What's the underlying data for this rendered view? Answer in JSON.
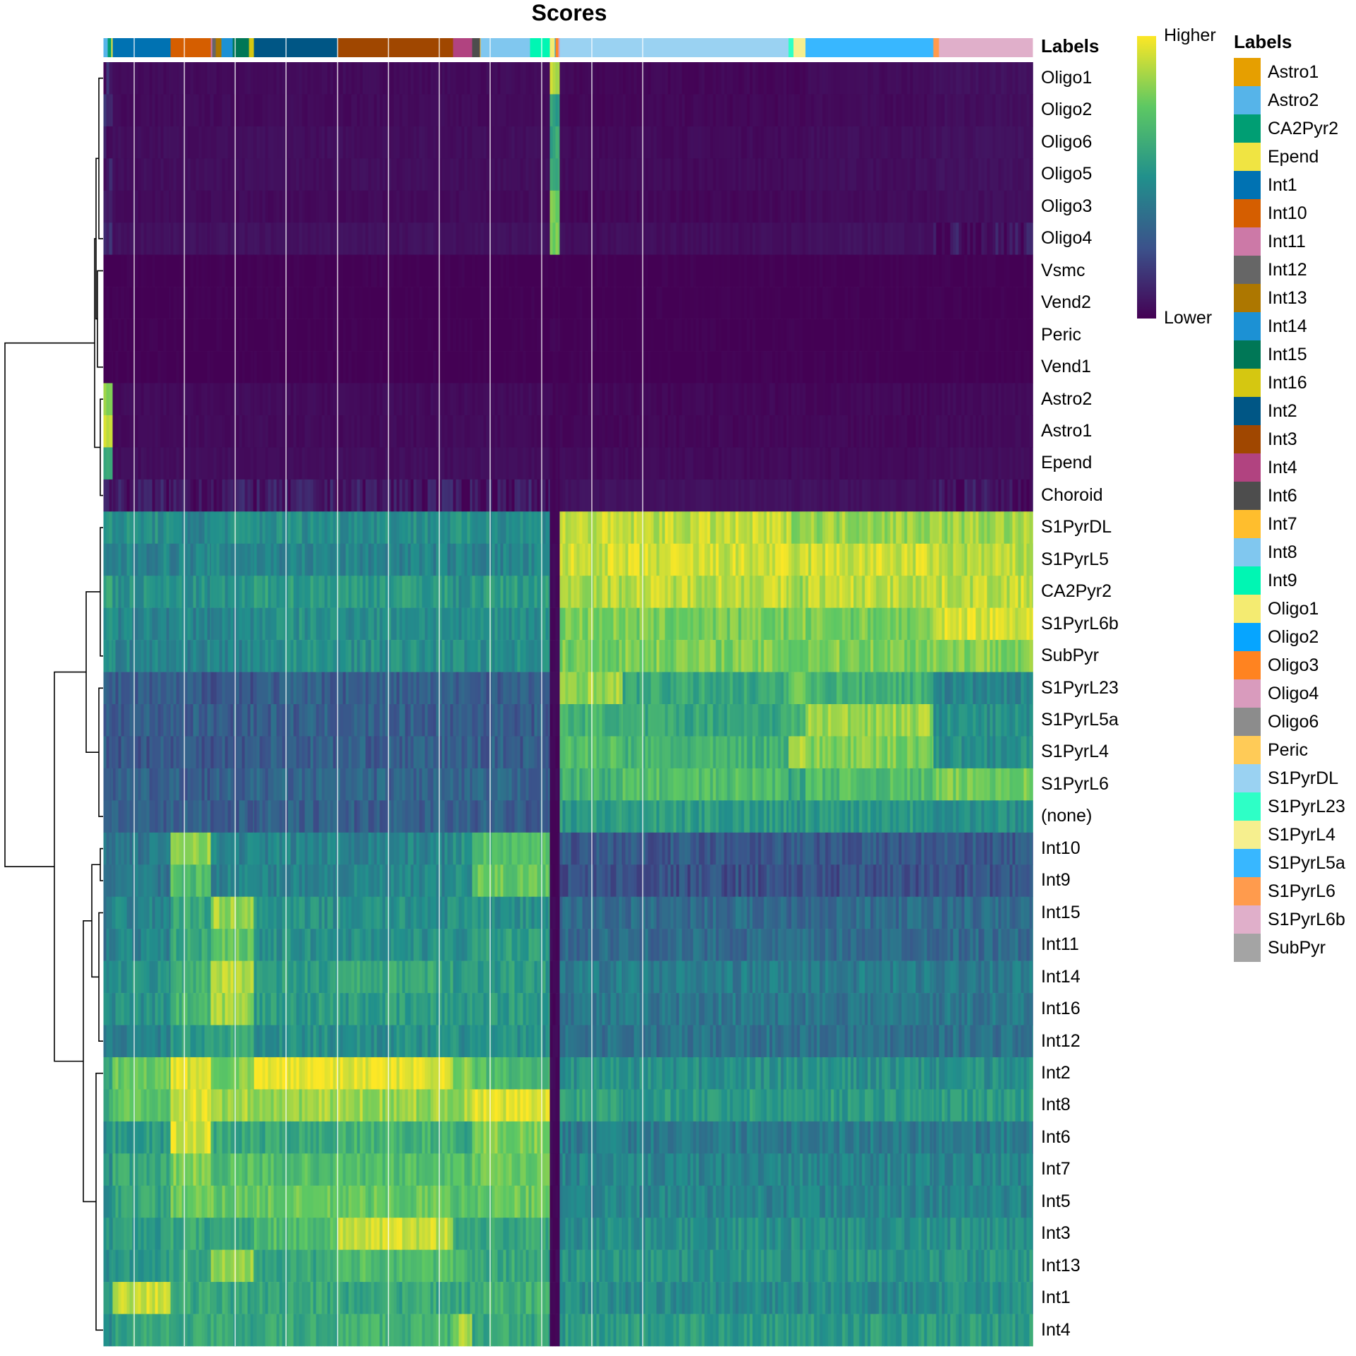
{
  "chart_data": {
    "type": "heatmap",
    "title": "Scores",
    "annotation_title": "Labels",
    "colorbar": {
      "high_label": "Higher",
      "low_label": "Lower",
      "palette": [
        "#440154",
        "#3B528B",
        "#21908C",
        "#5DC863",
        "#FDE725"
      ]
    },
    "rows": [
      "Oligo1",
      "Oligo2",
      "Oligo6",
      "Oligo5",
      "Oligo3",
      "Oligo4",
      "Vsmc",
      "Vend2",
      "Peric",
      "Vend1",
      "Astro2",
      "Astro1",
      "Epend",
      "Choroid",
      "S1PyrDL",
      "S1PyrL5",
      "CA2Pyr2",
      "S1PyrL6b",
      "SubPyr",
      "S1PyrL23",
      "S1PyrL5a",
      "S1PyrL4",
      "S1PyrL6",
      "(none)",
      "Int10",
      "Int9",
      "Int15",
      "Int11",
      "Int14",
      "Int16",
      "Int12",
      "Int2",
      "Int8",
      "Int6",
      "Int7",
      "Int5",
      "Int3",
      "Int13",
      "Int1",
      "Int4"
    ],
    "column_annotation": [
      [
        "Astro2",
        6
      ],
      [
        "CA2Pyr2",
        5
      ],
      [
        "Epend",
        2
      ],
      [
        "Int1",
        82
      ],
      [
        "Int10",
        57
      ],
      [
        "Int11",
        2
      ],
      [
        "Int12",
        5
      ],
      [
        "Int13",
        8
      ],
      [
        "Int14",
        16
      ],
      [
        "Int15",
        23
      ],
      [
        "Int16",
        7
      ],
      [
        "Int2",
        118
      ],
      [
        "Int3",
        164
      ],
      [
        "Int4",
        27
      ],
      [
        "Int6",
        11
      ],
      [
        "Int7",
        1
      ],
      [
        "Int8",
        70
      ],
      [
        "Int9",
        28
      ],
      [
        "Oligo1",
        7
      ],
      [
        "Oligo2",
        1
      ],
      [
        "Oligo3",
        4
      ],
      [
        "Oligo4",
        2
      ],
      [
        "S1PyrDL",
        324
      ],
      [
        "S1PyrL23",
        7
      ],
      [
        "S1PyrL4",
        17
      ],
      [
        "S1PyrL5a",
        181
      ],
      [
        "S1PyrL6",
        8
      ],
      [
        "S1PyrL6b",
        133
      ]
    ],
    "column_groups": [
      {
        "labels": [
          "Astro2",
          "CA2Pyr2",
          "Epend"
        ],
        "n": 13
      },
      {
        "labels": [
          "Int1"
        ],
        "n": 82
      },
      {
        "labels": [
          "Int10"
        ],
        "n": 57
      },
      {
        "labels": [
          "Int11",
          "Int12",
          "Int13",
          "Int14",
          "Int15",
          "Int16"
        ],
        "n": 61
      },
      {
        "labels": [
          "Int2"
        ],
        "n": 118
      },
      {
        "labels": [
          "Int3"
        ],
        "n": 164
      },
      {
        "labels": [
          "Int4"
        ],
        "n": 27
      },
      {
        "labels": [
          "Int6",
          "Int7",
          "Int8",
          "Int9"
        ],
        "n": 110
      },
      {
        "labels": [
          "Oligo1",
          "Oligo2",
          "Oligo3",
          "Oligo4"
        ],
        "n": 14
      },
      {
        "labels": [
          "S1PyrDL"
        ],
        "n": 89
      },
      {
        "labels": [
          "S1PyrDL"
        ],
        "n": 235
      },
      {
        "labels": [
          "S1PyrL23",
          "S1PyrL4"
        ],
        "n": 24
      },
      {
        "labels": [
          "S1PyrL5a"
        ],
        "n": 181
      },
      {
        "labels": [
          "S1PyrL6",
          "S1PyrL6b"
        ],
        "n": 141
      }
    ],
    "values": [
      [
        0.1,
        0.03,
        0.03,
        0.03,
        0.03,
        0.03,
        0.03,
        0.03,
        0.9,
        0.02,
        0.02,
        0.02,
        0.03,
        0.05
      ],
      [
        0.1,
        0.03,
        0.03,
        0.03,
        0.03,
        0.03,
        0.03,
        0.03,
        0.55,
        0.02,
        0.02,
        0.02,
        0.03,
        0.04
      ],
      [
        0.08,
        0.04,
        0.04,
        0.04,
        0.04,
        0.04,
        0.04,
        0.04,
        0.6,
        0.03,
        0.03,
        0.03,
        0.04,
        0.05
      ],
      [
        0.08,
        0.04,
        0.04,
        0.04,
        0.04,
        0.04,
        0.04,
        0.04,
        0.65,
        0.03,
        0.03,
        0.03,
        0.04,
        0.05
      ],
      [
        0.1,
        0.03,
        0.03,
        0.03,
        0.03,
        0.03,
        0.03,
        0.03,
        0.8,
        0.02,
        0.02,
        0.02,
        0.03,
        0.04
      ],
      [
        0.1,
        0.05,
        0.05,
        0.05,
        0.05,
        0.05,
        0.05,
        0.05,
        0.75,
        0.04,
        0.04,
        0.04,
        0.05,
        0.06
      ],
      [
        0.0,
        0.0,
        0.0,
        0.0,
        0.0,
        0.0,
        0.0,
        0.0,
        0.0,
        0.0,
        0.0,
        0.0,
        0.0,
        0.0
      ],
      [
        0.0,
        0.0,
        0.0,
        0.0,
        0.0,
        0.0,
        0.0,
        0.0,
        0.0,
        0.0,
        0.0,
        0.0,
        0.0,
        0.0
      ],
      [
        0.0,
        0.0,
        0.0,
        0.0,
        0.0,
        0.0,
        0.0,
        0.0,
        0.02,
        0.0,
        0.0,
        0.0,
        0.0,
        0.0
      ],
      [
        0.0,
        0.0,
        0.0,
        0.0,
        0.0,
        0.0,
        0.0,
        0.0,
        0.0,
        0.0,
        0.0,
        0.0,
        0.0,
        0.0
      ],
      [
        0.8,
        0.03,
        0.03,
        0.03,
        0.03,
        0.03,
        0.03,
        0.03,
        0.02,
        0.02,
        0.02,
        0.02,
        0.02,
        0.03
      ],
      [
        0.9,
        0.03,
        0.03,
        0.03,
        0.03,
        0.03,
        0.03,
        0.03,
        0.02,
        0.02,
        0.02,
        0.02,
        0.02,
        0.03
      ],
      [
        0.6,
        0.04,
        0.04,
        0.04,
        0.04,
        0.04,
        0.04,
        0.04,
        0.02,
        0.03,
        0.03,
        0.03,
        0.03,
        0.04
      ],
      [
        0.1,
        0.07,
        0.07,
        0.07,
        0.07,
        0.07,
        0.07,
        0.07,
        0.02,
        0.05,
        0.05,
        0.05,
        0.05,
        0.06
      ],
      [
        0.5,
        0.5,
        0.45,
        0.5,
        0.5,
        0.5,
        0.5,
        0.5,
        0.02,
        0.9,
        0.9,
        0.85,
        0.85,
        0.85
      ],
      [
        0.4,
        0.45,
        0.45,
        0.45,
        0.45,
        0.45,
        0.45,
        0.45,
        0.02,
        0.92,
        0.92,
        0.9,
        0.92,
        0.88
      ],
      [
        0.6,
        0.5,
        0.5,
        0.5,
        0.55,
        0.55,
        0.5,
        0.55,
        0.02,
        0.88,
        0.9,
        0.85,
        0.9,
        0.9
      ],
      [
        0.5,
        0.45,
        0.45,
        0.45,
        0.5,
        0.5,
        0.45,
        0.5,
        0.02,
        0.8,
        0.78,
        0.8,
        0.78,
        0.95
      ],
      [
        0.5,
        0.45,
        0.45,
        0.45,
        0.5,
        0.5,
        0.5,
        0.5,
        0.02,
        0.78,
        0.8,
        0.75,
        0.8,
        0.82
      ],
      [
        0.3,
        0.28,
        0.28,
        0.28,
        0.3,
        0.3,
        0.3,
        0.3,
        0.02,
        0.85,
        0.6,
        0.8,
        0.65,
        0.45
      ],
      [
        0.3,
        0.3,
        0.3,
        0.3,
        0.3,
        0.3,
        0.3,
        0.3,
        0.02,
        0.65,
        0.6,
        0.65,
        0.85,
        0.5
      ],
      [
        0.3,
        0.28,
        0.28,
        0.28,
        0.3,
        0.3,
        0.3,
        0.3,
        0.02,
        0.7,
        0.65,
        0.9,
        0.8,
        0.5
      ],
      [
        0.35,
        0.3,
        0.3,
        0.3,
        0.32,
        0.32,
        0.3,
        0.32,
        0.02,
        0.65,
        0.7,
        0.6,
        0.7,
        0.78
      ],
      [
        0.35,
        0.3,
        0.3,
        0.3,
        0.3,
        0.3,
        0.3,
        0.3,
        0.02,
        0.55,
        0.55,
        0.5,
        0.55,
        0.5
      ],
      [
        0.4,
        0.4,
        0.85,
        0.45,
        0.45,
        0.45,
        0.5,
        0.7,
        0.02,
        0.28,
        0.28,
        0.28,
        0.28,
        0.28
      ],
      [
        0.4,
        0.4,
        0.7,
        0.45,
        0.45,
        0.45,
        0.5,
        0.75,
        0.02,
        0.25,
        0.25,
        0.25,
        0.25,
        0.27
      ],
      [
        0.4,
        0.45,
        0.6,
        0.85,
        0.5,
        0.5,
        0.5,
        0.5,
        0.02,
        0.35,
        0.35,
        0.35,
        0.35,
        0.35
      ],
      [
        0.4,
        0.45,
        0.6,
        0.75,
        0.5,
        0.5,
        0.5,
        0.55,
        0.02,
        0.35,
        0.35,
        0.35,
        0.35,
        0.35
      ],
      [
        0.45,
        0.5,
        0.65,
        0.9,
        0.55,
        0.6,
        0.55,
        0.55,
        0.02,
        0.42,
        0.42,
        0.42,
        0.42,
        0.42
      ],
      [
        0.45,
        0.5,
        0.65,
        0.85,
        0.55,
        0.55,
        0.55,
        0.55,
        0.02,
        0.4,
        0.4,
        0.4,
        0.4,
        0.4
      ],
      [
        0.4,
        0.45,
        0.55,
        0.6,
        0.5,
        0.5,
        0.5,
        0.5,
        0.02,
        0.38,
        0.38,
        0.38,
        0.38,
        0.38
      ],
      [
        0.6,
        0.75,
        0.95,
        0.8,
        0.98,
        0.97,
        0.8,
        0.7,
        0.02,
        0.5,
        0.5,
        0.5,
        0.5,
        0.5
      ],
      [
        0.6,
        0.75,
        0.95,
        0.85,
        0.85,
        0.85,
        0.85,
        0.95,
        0.02,
        0.6,
        0.55,
        0.55,
        0.55,
        0.55
      ],
      [
        0.5,
        0.55,
        0.95,
        0.6,
        0.6,
        0.65,
        0.6,
        0.8,
        0.02,
        0.42,
        0.42,
        0.42,
        0.42,
        0.42
      ],
      [
        0.5,
        0.6,
        0.8,
        0.7,
        0.7,
        0.7,
        0.7,
        0.75,
        0.02,
        0.45,
        0.45,
        0.45,
        0.45,
        0.45
      ],
      [
        0.5,
        0.6,
        0.75,
        0.75,
        0.75,
        0.75,
        0.7,
        0.75,
        0.02,
        0.45,
        0.45,
        0.45,
        0.45,
        0.45
      ],
      [
        0.5,
        0.55,
        0.6,
        0.6,
        0.7,
        0.92,
        0.6,
        0.6,
        0.02,
        0.5,
        0.5,
        0.5,
        0.5,
        0.5
      ],
      [
        0.5,
        0.55,
        0.6,
        0.85,
        0.6,
        0.7,
        0.65,
        0.6,
        0.02,
        0.52,
        0.52,
        0.52,
        0.52,
        0.52
      ],
      [
        0.6,
        0.92,
        0.6,
        0.6,
        0.6,
        0.6,
        0.6,
        0.65,
        0.02,
        0.48,
        0.48,
        0.48,
        0.48,
        0.5
      ],
      [
        0.5,
        0.6,
        0.6,
        0.6,
        0.6,
        0.65,
        0.85,
        0.6,
        0.02,
        0.55,
        0.55,
        0.55,
        0.55,
        0.55
      ]
    ],
    "legend": {
      "title": "Labels",
      "items": [
        {
          "label": "Astro1",
          "color": "#E69F00"
        },
        {
          "label": "Astro2",
          "color": "#56B4E9"
        },
        {
          "label": "CA2Pyr2",
          "color": "#009E73"
        },
        {
          "label": "Epend",
          "color": "#F0E442"
        },
        {
          "label": "Int1",
          "color": "#0072B2"
        },
        {
          "label": "Int10",
          "color": "#D55E00"
        },
        {
          "label": "Int11",
          "color": "#CC79A7"
        },
        {
          "label": "Int12",
          "color": "#666666"
        },
        {
          "label": "Int13",
          "color": "#AD7700"
        },
        {
          "label": "Int14",
          "color": "#1C91D4"
        },
        {
          "label": "Int15",
          "color": "#007756"
        },
        {
          "label": "Int16",
          "color": "#D5C711"
        },
        {
          "label": "Int2",
          "color": "#005685"
        },
        {
          "label": "Int3",
          "color": "#A04700"
        },
        {
          "label": "Int4",
          "color": "#B14380"
        },
        {
          "label": "Int6",
          "color": "#4D4D4D"
        },
        {
          "label": "Int7",
          "color": "#FFBE2D"
        },
        {
          "label": "Int8",
          "color": "#80C7EF"
        },
        {
          "label": "Int9",
          "color": "#00F6B3"
        },
        {
          "label": "Oligo1",
          "color": "#F4EB71"
        },
        {
          "label": "Oligo2",
          "color": "#06A5FF"
        },
        {
          "label": "Oligo3",
          "color": "#FF8320"
        },
        {
          "label": "Oligo4",
          "color": "#D99BBD"
        },
        {
          "label": "Oligo6",
          "color": "#8C8C8C"
        },
        {
          "label": "Peric",
          "color": "#FFCB57"
        },
        {
          "label": "S1PyrDL",
          "color": "#9AD2F2"
        },
        {
          "label": "S1PyrL23",
          "color": "#2EFFC6"
        },
        {
          "label": "S1PyrL4",
          "color": "#F6EF8E"
        },
        {
          "label": "S1PyrL5a",
          "color": "#38B7FF"
        },
        {
          "label": "S1PyrL6",
          "color": "#FF9B4D"
        },
        {
          "label": "S1PyrL6b",
          "color": "#E0AFCA"
        },
        {
          "label": "SubPyr",
          "color": "#A4A4A4"
        }
      ]
    }
  }
}
